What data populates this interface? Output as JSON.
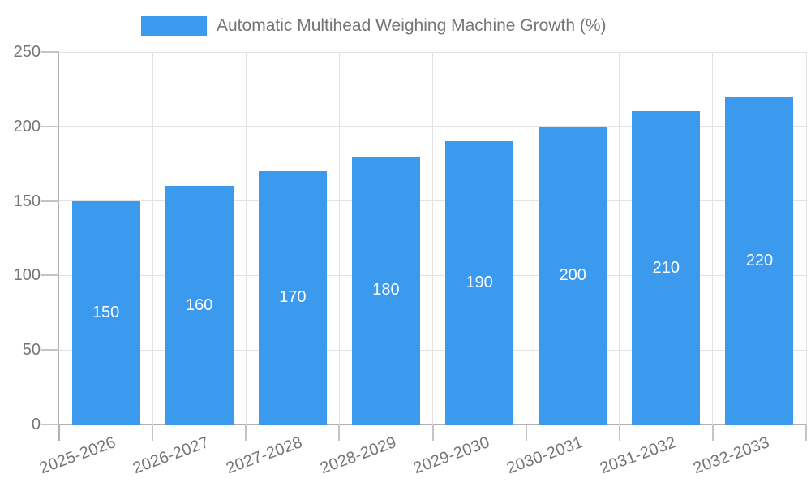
{
  "chart_data": {
    "type": "bar",
    "title": "Automatic Multihead Weighing Machine Growth (%)",
    "categories": [
      "2025-2026",
      "2026-2027",
      "2027-2028",
      "2028-2029",
      "2029-2030",
      "2030-2031",
      "2031-2032",
      "2032-2033"
    ],
    "values": [
      150,
      160,
      170,
      180,
      190,
      200,
      210,
      220
    ],
    "bar_labels": [
      "150",
      "160",
      "170",
      "180",
      "190",
      "200",
      "210",
      "220"
    ],
    "ylabel": "",
    "xlabel": "",
    "ylim": [
      0,
      250
    ],
    "yticks": [
      0,
      50,
      100,
      150,
      200,
      250
    ],
    "grid": true,
    "legend_position": "top-center",
    "colors": {
      "bar": "#3b99ee",
      "bar_label_text": "#ffffff",
      "grid": "#e2e2e2",
      "axis": "#b0b0b0",
      "tick": "#c4c4c4",
      "text": "#757575"
    }
  }
}
